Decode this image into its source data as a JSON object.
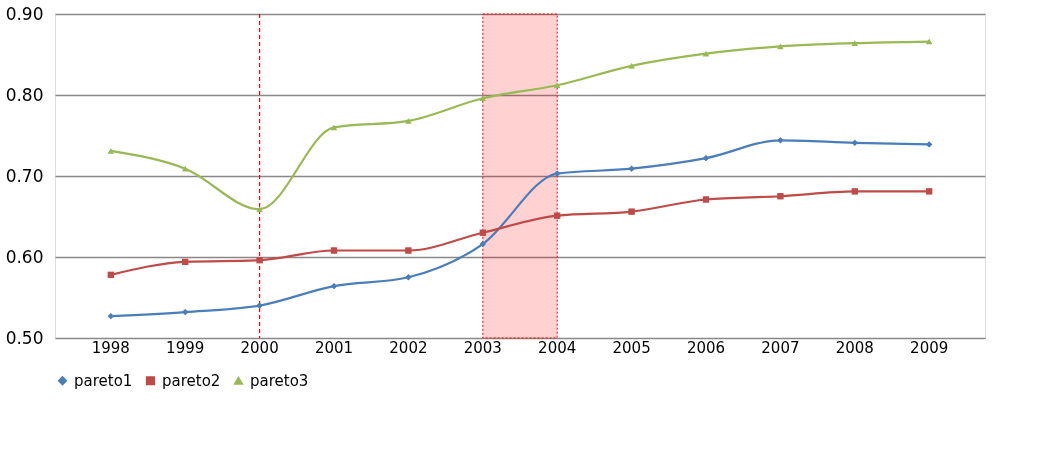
{
  "chart_data": {
    "type": "line",
    "categories": [
      "1998",
      "1999",
      "2000",
      "2001",
      "2002",
      "2003",
      "2004",
      "2005",
      "2006",
      "2007",
      "2008",
      "2009"
    ],
    "series": [
      {
        "name": "pareto1",
        "color": "#4a7ebb",
        "marker": "diamond",
        "values": [
          0.527,
          0.532,
          0.54,
          0.564,
          0.575,
          0.616,
          0.703,
          0.709,
          0.722,
          0.744,
          0.741,
          0.739
        ]
      },
      {
        "name": "pareto2",
        "color": "#be4b48",
        "marker": "square",
        "values": [
          0.578,
          0.594,
          0.596,
          0.608,
          0.608,
          0.63,
          0.651,
          0.656,
          0.671,
          0.675,
          0.681,
          0.681
        ]
      },
      {
        "name": "pareto3",
        "color": "#98b954",
        "marker": "triangle",
        "values": [
          0.731,
          0.709,
          0.659,
          0.76,
          0.768,
          0.796,
          0.812,
          0.836,
          0.851,
          0.86,
          0.864,
          0.866
        ]
      }
    ],
    "ylim": [
      0.5,
      0.9
    ],
    "yticks": [
      {
        "value": 0.5,
        "label": "0.50"
      },
      {
        "value": 0.6,
        "label": "0.60"
      },
      {
        "value": 0.7,
        "label": "0.70"
      },
      {
        "value": 0.8,
        "label": "0.80"
      },
      {
        "value": 0.9,
        "label": "0.90"
      }
    ],
    "ref_lines": [
      {
        "axis": "x",
        "value": "2000",
        "color": "#ff0000",
        "line_style": "dashed"
      }
    ],
    "bands": [
      {
        "axis": "x",
        "from": "2003",
        "to": "2004",
        "color": "#ff0000"
      }
    ],
    "grid": "y",
    "legend": "bottom"
  }
}
